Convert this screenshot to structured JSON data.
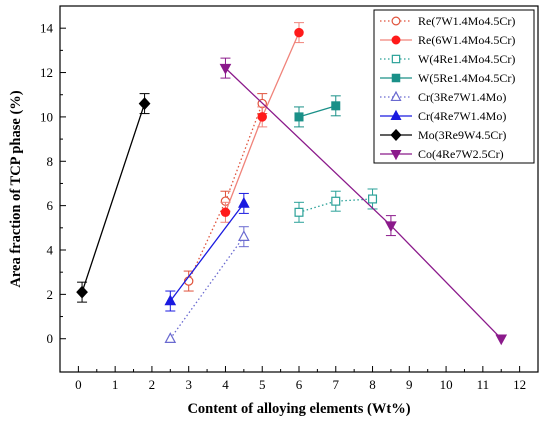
{
  "chart_data": {
    "type": "line",
    "xlabel": "Content of alloying elements (Wt%)",
    "ylabel": "Area fraction of TCP phase (%)",
    "xlim": [
      -0.5,
      12.5
    ],
    "ylim": [
      -1.5,
      15
    ],
    "x_ticks": [
      0,
      1,
      2,
      3,
      4,
      5,
      6,
      7,
      8,
      9,
      10,
      11,
      12
    ],
    "y_ticks": [
      0,
      2,
      4,
      6,
      8,
      10,
      12,
      14
    ],
    "grid": false,
    "legend_position": "top-right",
    "error_bars": true,
    "series": [
      {
        "name": "Re(7W1.4Mo4.5Cr)",
        "color": "#e0523b",
        "marker": "circle",
        "filled": false,
        "line_style": "dotted",
        "points": [
          {
            "x": 3.0,
            "y": 2.6,
            "err": 0.45
          },
          {
            "x": 4.0,
            "y": 6.2,
            "err": 0.45
          },
          {
            "x": 5.0,
            "y": 10.6,
            "err": 0.45
          }
        ]
      },
      {
        "name": "Re(6W1.4Mo4.5Cr)",
        "color": "#f0837a",
        "marker": "circle",
        "filled": true,
        "marker_color": "#ff1a1a",
        "line_style": "solid",
        "points": [
          {
            "x": 4.0,
            "y": 5.7,
            "err": 0.45
          },
          {
            "x": 5.0,
            "y": 10.0,
            "err": 0.45
          },
          {
            "x": 6.0,
            "y": 13.8,
            "err": 0.45
          }
        ]
      },
      {
        "name": "W(4Re1.4Mo4.5Cr)",
        "color": "#2aa198",
        "marker": "square",
        "filled": false,
        "line_style": "dotted",
        "points": [
          {
            "x": 6.0,
            "y": 5.7,
            "err": 0.45
          },
          {
            "x": 7.0,
            "y": 6.2,
            "err": 0.45
          },
          {
            "x": 8.0,
            "y": 6.3,
            "err": 0.45
          }
        ]
      },
      {
        "name": "W(5Re1.4Mo4.5Cr)",
        "color": "#1a9088",
        "marker": "square",
        "filled": true,
        "line_style": "solid",
        "points": [
          {
            "x": 6.0,
            "y": 10.0,
            "err": 0.45
          },
          {
            "x": 7.0,
            "y": 10.5,
            "err": 0.45
          }
        ]
      },
      {
        "name": "Cr(3Re7W1.4Mo)",
        "color": "#6a6ad0",
        "marker": "triangle-up",
        "filled": false,
        "line_style": "dotted",
        "points": [
          {
            "x": 2.5,
            "y": 0.0,
            "err": 0
          },
          {
            "x": 4.5,
            "y": 4.6,
            "err": 0.45
          }
        ]
      },
      {
        "name": "Cr(4Re7W1.4Mo)",
        "color": "#1a1ae0",
        "marker": "triangle-up",
        "filled": true,
        "line_style": "solid",
        "points": [
          {
            "x": 2.5,
            "y": 1.7,
            "err": 0.45
          },
          {
            "x": 4.5,
            "y": 6.1,
            "err": 0.45
          }
        ]
      },
      {
        "name": "Mo(3Re9W4.5Cr)",
        "color": "#000000",
        "marker": "diamond",
        "filled": true,
        "line_style": "solid",
        "points": [
          {
            "x": 0.1,
            "y": 2.1,
            "err": 0.45
          },
          {
            "x": 1.8,
            "y": 10.6,
            "err": 0.45
          }
        ]
      },
      {
        "name": "Co(4Re7W2.5Cr)",
        "color": "#8b1a8b",
        "marker": "triangle-down",
        "filled": true,
        "line_style": "solid",
        "points": [
          {
            "x": 4.0,
            "y": 12.2,
            "err": 0.45
          },
          {
            "x": 8.5,
            "y": 5.1,
            "err": 0.45
          },
          {
            "x": 11.5,
            "y": 0.0,
            "err": 0
          }
        ]
      }
    ]
  }
}
